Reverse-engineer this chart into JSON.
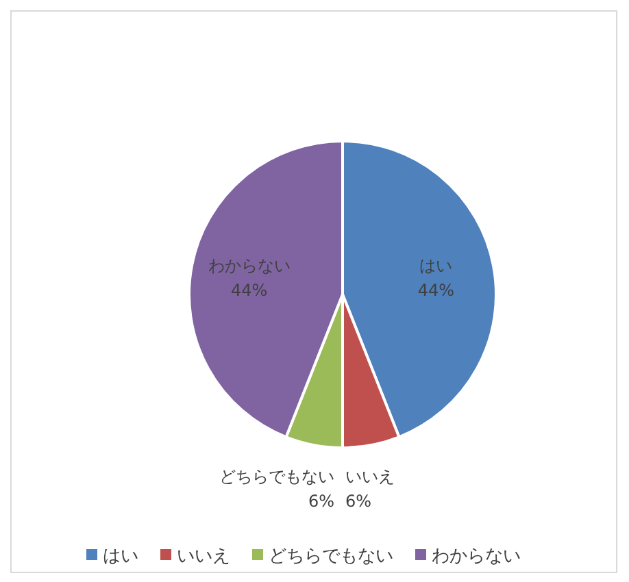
{
  "chart_data": {
    "type": "pie",
    "categories": [
      "はい",
      "いいえ",
      "どちらでもない",
      "わからない"
    ],
    "values": [
      44,
      6,
      6,
      44
    ],
    "value_labels": [
      "44%",
      "6%",
      "6%",
      "44%"
    ],
    "colors": [
      "#4f81bd",
      "#c0504d",
      "#9bbb59",
      "#8064a2"
    ],
    "legend": "bottom"
  }
}
